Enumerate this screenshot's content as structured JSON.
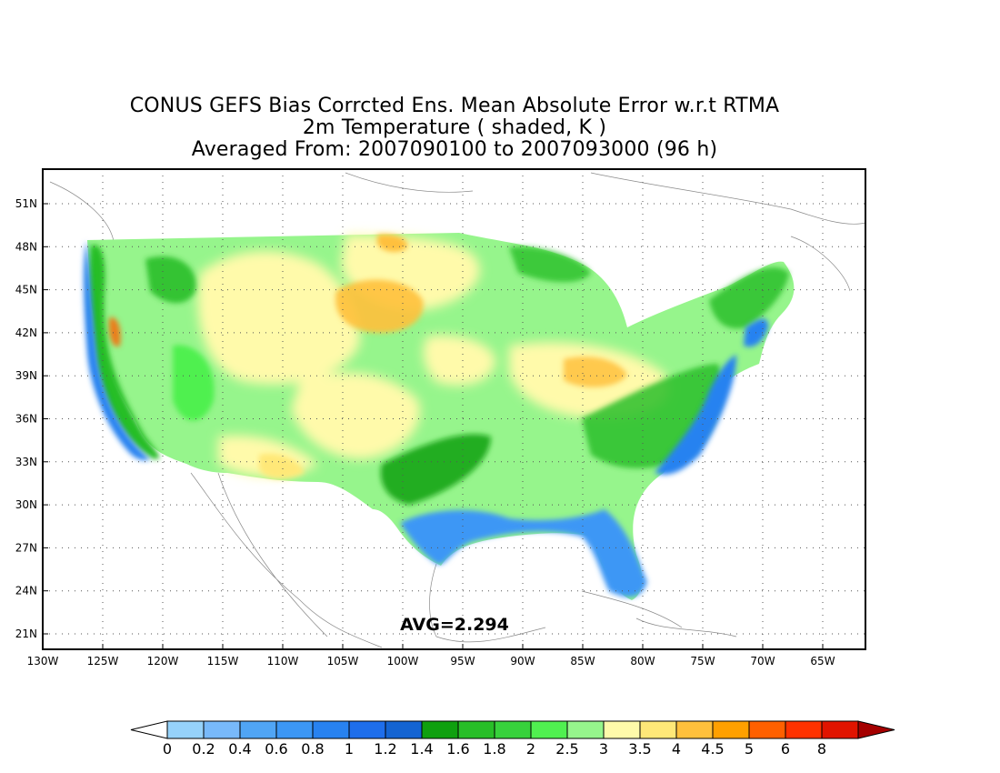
{
  "title": {
    "line1": "CONUS GEFS Bias Corrcted Ens. Mean Absolute Error w.r.t RTMA",
    "line2": "2m Temperature ( shaded, K )",
    "line3": "Averaged From: 2007090100 to 2007093000 (96 h)"
  },
  "annotation": "AVG=2.294",
  "axes": {
    "lon_labels": [
      "130W",
      "125W",
      "120W",
      "115W",
      "110W",
      "105W",
      "100W",
      "95W",
      "90W",
      "85W",
      "80W",
      "75W",
      "70W",
      "65W"
    ],
    "lat_labels": [
      "21N",
      "24N",
      "27N",
      "30N",
      "33N",
      "36N",
      "39N",
      "42N",
      "45N",
      "48N",
      "51N"
    ],
    "grid": "dotted"
  },
  "colorbar": {
    "levels": [
      "0",
      "0.2",
      "0.4",
      "0.6",
      "0.8",
      "1",
      "1.2",
      "1.4",
      "1.6",
      "1.8",
      "2",
      "2.5",
      "3",
      "3.5",
      "4",
      "4.5",
      "5",
      "6",
      "8"
    ],
    "colors": [
      "#96d2fa",
      "#78b9fa",
      "#50a5f5",
      "#3c97f5",
      "#2882f0",
      "#1e6eeb",
      "#1464d2",
      "#0fa00f",
      "#28be28",
      "#37d23c",
      "#50f050",
      "#96f58c",
      "#fffaaa",
      "#ffe878",
      "#ffc03c",
      "#ffa000",
      "#ff6000",
      "#ff3200",
      "#e11400",
      "#c00000"
    ],
    "under_color": "#ffffff",
    "over_color": "#a50000"
  }
}
